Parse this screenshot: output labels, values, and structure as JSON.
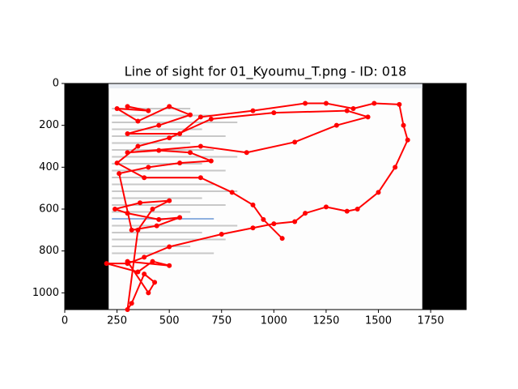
{
  "chart_data": {
    "type": "line",
    "title": "Line of sight for 01_Kyoumu_T.png - ID: 018",
    "x": [
      300,
      400,
      250,
      350,
      500,
      600,
      450,
      300,
      550,
      650,
      900,
      1150,
      1250,
      1380,
      1480,
      1600,
      1620,
      1640,
      1580,
      1500,
      1400,
      1350,
      1250,
      1150,
      1100,
      1000,
      900,
      750,
      500,
      380,
      300,
      200,
      350,
      420,
      500,
      300,
      400,
      430,
      380,
      320,
      300,
      350,
      420,
      500,
      360,
      240,
      300,
      450,
      550,
      440,
      320,
      260,
      400,
      550,
      700,
      600,
      450,
      300,
      650,
      870,
      1100,
      1300,
      1450,
      1350,
      1000,
      700,
      500,
      350,
      250,
      380,
      650,
      800,
      900,
      950,
      1040
    ],
    "series": [
      {
        "color": "#ff0000",
        "values": [
          110,
          130,
          120,
          180,
          110,
          150,
          200,
          240,
          240,
          160,
          130,
          95,
          95,
          120,
          95,
          100,
          200,
          270,
          400,
          520,
          600,
          610,
          590,
          620,
          660,
          670,
          690,
          720,
          780,
          830,
          860,
          860,
          900,
          850,
          870,
          850,
          1000,
          950,
          910,
          1050,
          1080,
          700,
          600,
          560,
          570,
          600,
          620,
          650,
          640,
          680,
          700,
          430,
          400,
          380,
          370,
          330,
          320,
          330,
          300,
          330,
          280,
          200,
          160,
          130,
          140,
          170,
          260,
          300,
          380,
          450,
          450,
          520,
          580,
          650,
          740
        ]
      }
    ],
    "xlim": [
      0,
      1920
    ],
    "ylim": [
      1080,
      0
    ],
    "xticks": [
      0,
      250,
      500,
      750,
      1000,
      1250,
      1500,
      1750
    ],
    "yticks": [
      0,
      200,
      400,
      600,
      800,
      1000
    ]
  }
}
